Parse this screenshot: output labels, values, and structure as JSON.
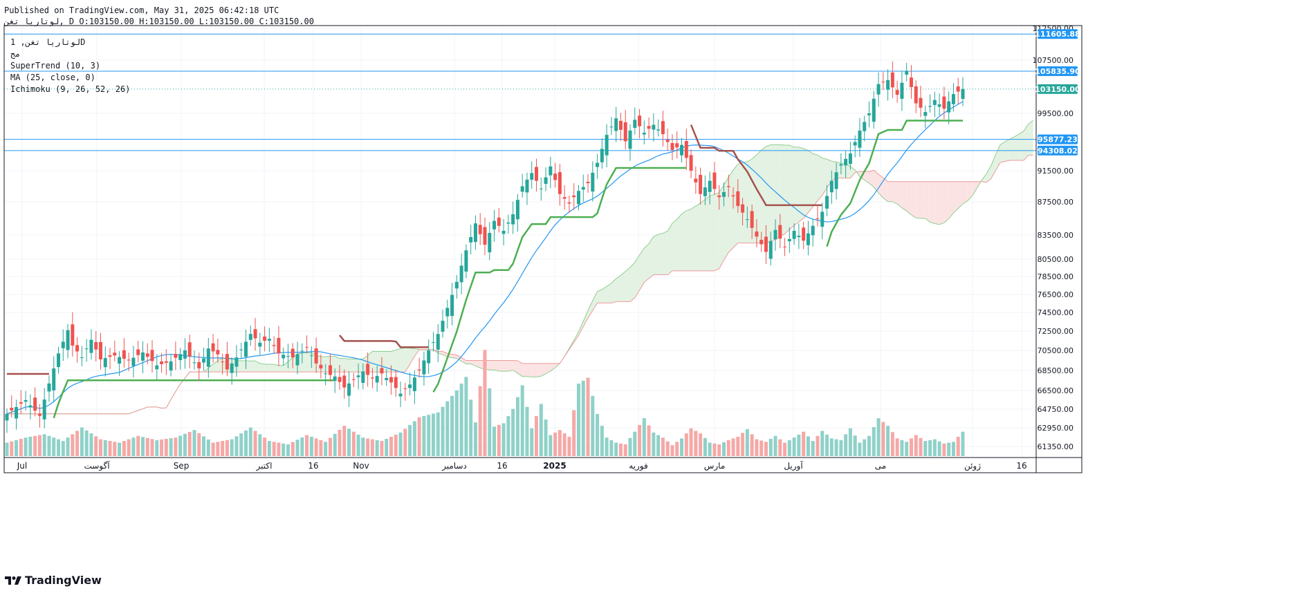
{
  "header": {
    "published": "Published on TradingView.com, May 31, 2025 06:42:18 UTC",
    "ohlc": "لوتاریا تغن, D O:103150.00 H:103150.00 L:103150.00 C:103150.00"
  },
  "legend": {
    "symbol": "لوتاریا تغن, 1D",
    "exchange": "مج",
    "supertrend": "SuperTrend (10, 3)",
    "ma": "MA (25, close, 0)",
    "ichimoku": "Ichimoku (9, 26, 52, 26)"
  },
  "brand": {
    "name": "TradingView"
  },
  "colors": {
    "up": "#26a69a",
    "down": "#ef5350",
    "ma": "#2196f3",
    "supertrend_up": "#4caf50",
    "supertrend_down": "#a5514c",
    "hline": "#2196f3",
    "cloud_bull": "#e3f2e3",
    "cloud_bear": "#fbe3e3"
  },
  "chart_data": {
    "type": "candlestick",
    "timeframe": "1D",
    "y_axis": {
      "ticks": [
        112500,
        107500,
        99500,
        91500,
        87500,
        83500,
        80500,
        78500,
        76500,
        74500,
        72500,
        70500,
        68500,
        66500,
        64750,
        62950,
        61350
      ],
      "labels": [
        "112500.00",
        "107500.00",
        "99500.00",
        "91500.00",
        "87500.00",
        "83500.00",
        "80500.00",
        "78500.00",
        "76500.00",
        "74500.00",
        "72500.00",
        "70500.00",
        "68500.00",
        "66500.00",
        "64750.00",
        "62950.00",
        "61350.00"
      ],
      "scale": "log"
    },
    "x_axis": {
      "labels": [
        "Jul",
        "آگوست",
        "Sep",
        "اکتبر",
        "16",
        "Nov",
        "دسامبر",
        "16",
        "2025",
        "فوریه",
        "مارس",
        "آوریل",
        "می",
        "ژوئن",
        "16"
      ]
    },
    "horizontal_lines": [
      {
        "value": 111605.88,
        "label": "111605.88"
      },
      {
        "value": 105835.9,
        "label": "105835.90"
      },
      {
        "value": 95877.23,
        "label": "95877.23"
      },
      {
        "value": 94308.02,
        "label": "94308.02"
      }
    ],
    "last_price": {
      "value": 103150.0,
      "label": "103150.00"
    },
    "price_path": [
      [
        0,
        64300
      ],
      [
        4,
        65600
      ],
      [
        7,
        64100
      ],
      [
        9,
        67200
      ],
      [
        11,
        70200
      ],
      [
        13,
        72600
      ],
      [
        14,
        71000
      ],
      [
        16,
        69800
      ],
      [
        18,
        71600
      ],
      [
        20,
        69600
      ],
      [
        23,
        70000
      ],
      [
        26,
        69500
      ],
      [
        29,
        70300
      ],
      [
        32,
        69000
      ],
      [
        35,
        69400
      ],
      [
        38,
        70500
      ],
      [
        41,
        68700
      ],
      [
        43,
        70700
      ],
      [
        45,
        70100
      ],
      [
        47,
        68600
      ],
      [
        49,
        69800
      ],
      [
        52,
        72200
      ],
      [
        54,
        71300
      ],
      [
        56,
        71700
      ],
      [
        58,
        70200
      ],
      [
        61,
        69800
      ],
      [
        64,
        70800
      ],
      [
        66,
        69200
      ],
      [
        68,
        68200
      ],
      [
        70,
        67900
      ],
      [
        72,
        66800
      ],
      [
        74,
        67600
      ],
      [
        76,
        68400
      ],
      [
        78,
        67700
      ],
      [
        80,
        68200
      ],
      [
        82,
        67300
      ],
      [
        84,
        66200
      ],
      [
        86,
        67100
      ],
      [
        88,
        68500
      ],
      [
        90,
        70500
      ],
      [
        92,
        72200
      ],
      [
        94,
        75000
      ],
      [
        96,
        77900
      ],
      [
        98,
        81600
      ],
      [
        100,
        84900
      ],
      [
        102,
        82300
      ],
      [
        104,
        85200
      ],
      [
        106,
        84000
      ],
      [
        108,
        86000
      ],
      [
        110,
        89500
      ],
      [
        112,
        91200
      ],
      [
        114,
        89200
      ],
      [
        116,
        92100
      ],
      [
        118,
        88500
      ],
      [
        120,
        87300
      ],
      [
        122,
        88900
      ],
      [
        124,
        89900
      ],
      [
        126,
        92600
      ],
      [
        128,
        96500
      ],
      [
        130,
        98800
      ],
      [
        132,
        95600
      ],
      [
        134,
        98600
      ],
      [
        136,
        96800
      ],
      [
        138,
        97900
      ],
      [
        140,
        96600
      ],
      [
        142,
        94400
      ],
      [
        144,
        95100
      ],
      [
        146,
        91500
      ],
      [
        148,
        88500
      ],
      [
        150,
        90200
      ],
      [
        152,
        88100
      ],
      [
        154,
        89400
      ],
      [
        156,
        87000
      ],
      [
        158,
        85400
      ],
      [
        160,
        83300
      ],
      [
        162,
        81400
      ],
      [
        164,
        84100
      ],
      [
        166,
        82000
      ],
      [
        168,
        84000
      ],
      [
        170,
        82800
      ],
      [
        172,
        84600
      ],
      [
        174,
        86300
      ],
      [
        176,
        90200
      ],
      [
        178,
        92400
      ],
      [
        180,
        93900
      ],
      [
        182,
        97100
      ],
      [
        184,
        99500
      ],
      [
        186,
        103900
      ],
      [
        188,
        104500
      ],
      [
        190,
        102300
      ],
      [
        192,
        105900
      ],
      [
        194,
        101000
      ],
      [
        196,
        99700
      ],
      [
        198,
        101500
      ],
      [
        200,
        100200
      ],
      [
        202,
        102400
      ],
      [
        204,
        103150
      ]
    ],
    "volume": [
      [
        0,
        1.6
      ],
      [
        4,
        2.2
      ],
      [
        8,
        2.6
      ],
      [
        12,
        1.8
      ],
      [
        16,
        3.4
      ],
      [
        20,
        2.0
      ],
      [
        24,
        1.6
      ],
      [
        28,
        2.4
      ],
      [
        32,
        1.9
      ],
      [
        36,
        2.2
      ],
      [
        40,
        3.1
      ],
      [
        44,
        1.6
      ],
      [
        48,
        2.0
      ],
      [
        52,
        3.4
      ],
      [
        56,
        1.8
      ],
      [
        60,
        1.4
      ],
      [
        64,
        2.5
      ],
      [
        68,
        1.7
      ],
      [
        72,
        3.6
      ],
      [
        76,
        2.2
      ],
      [
        80,
        1.8
      ],
      [
        84,
        2.8
      ],
      [
        88,
        4.6
      ],
      [
        92,
        5.2
      ],
      [
        96,
        7.8
      ],
      [
        98,
        9.4
      ],
      [
        100,
        4.0
      ],
      [
        102,
        12.6
      ],
      [
        104,
        3.5
      ],
      [
        106,
        3.9
      ],
      [
        108,
        5.6
      ],
      [
        110,
        8.4
      ],
      [
        112,
        3.3
      ],
      [
        114,
        6.2
      ],
      [
        116,
        2.5
      ],
      [
        118,
        3.1
      ],
      [
        120,
        2.3
      ],
      [
        122,
        8.6
      ],
      [
        124,
        9.3
      ],
      [
        126,
        5.0
      ],
      [
        128,
        2.2
      ],
      [
        130,
        1.6
      ],
      [
        132,
        1.4
      ],
      [
        134,
        2.9
      ],
      [
        136,
        4.5
      ],
      [
        138,
        2.8
      ],
      [
        140,
        2.2
      ],
      [
        142,
        1.3
      ],
      [
        144,
        2.1
      ],
      [
        146,
        3.3
      ],
      [
        148,
        2.7
      ],
      [
        150,
        1.6
      ],
      [
        152,
        1.4
      ],
      [
        154,
        1.9
      ],
      [
        156,
        2.3
      ],
      [
        158,
        3.2
      ],
      [
        160,
        2.0
      ],
      [
        162,
        1.7
      ],
      [
        164,
        2.4
      ],
      [
        166,
        1.6
      ],
      [
        168,
        2.2
      ],
      [
        170,
        2.9
      ],
      [
        172,
        1.8
      ],
      [
        174,
        3.0
      ],
      [
        176,
        2.1
      ],
      [
        178,
        1.9
      ],
      [
        180,
        3.3
      ],
      [
        182,
        1.6
      ],
      [
        184,
        2.4
      ],
      [
        186,
        4.5
      ],
      [
        188,
        3.6
      ],
      [
        190,
        2.1
      ],
      [
        192,
        1.7
      ],
      [
        194,
        2.5
      ],
      [
        196,
        1.8
      ],
      [
        198,
        2.0
      ],
      [
        200,
        1.5
      ],
      [
        202,
        1.7
      ],
      [
        204,
        2.9
      ]
    ]
  }
}
